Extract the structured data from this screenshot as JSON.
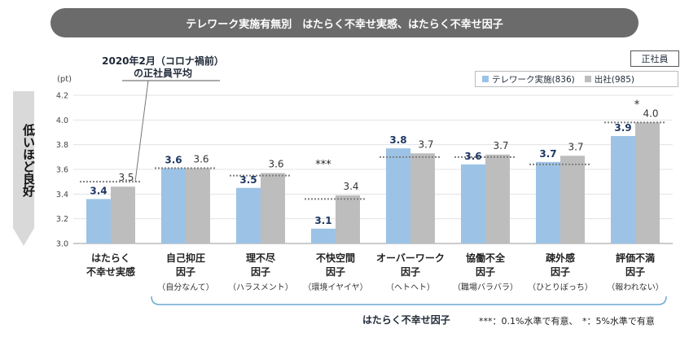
{
  "banner": {
    "title": "テレワーク実施有無別　はたらく不幸せ実感、はたらく不幸せ因子"
  },
  "badge": {
    "label": "正社員"
  },
  "callout": {
    "line1": "2020年2月（コロナ禍前）",
    "line2": "の正社員平均"
  },
  "side_label": "低いほど良好",
  "group_label": "はたらく不幸せ因子",
  "footnote": "***：0.1%水準で有意、　*：5%水準で有意",
  "colors": {
    "telework": "#9cc3e6",
    "office": "#bdbdbd",
    "reference": "#7f7f7f",
    "value_blue": "#1f3864",
    "banner": "#6b6b6b",
    "bracket": "#6aa9d4"
  },
  "chart_data": {
    "type": "bar",
    "ylabel": "(pt)",
    "ylim": [
      3.0,
      4.2
    ],
    "yticks": [
      "3.0",
      "3.2",
      "3.4",
      "3.6",
      "3.8",
      "4.0",
      "4.2"
    ],
    "grid": true,
    "legend_position": "top-right",
    "categories": [
      {
        "line1": "はたらく",
        "line2": "不幸せ実感",
        "line3": ""
      },
      {
        "line1": "自己抑圧",
        "line2": "因子",
        "line3": "（自分なんて）"
      },
      {
        "line1": "理不尽",
        "line2": "因子",
        "line3": "（ハラスメント）"
      },
      {
        "line1": "不快空間",
        "line2": "因子",
        "line3": "（環境イヤイヤ）"
      },
      {
        "line1": "オーバーワーク",
        "line2": "因子",
        "line3": "（ヘトヘト）"
      },
      {
        "line1": "協働不全",
        "line2": "因子",
        "line3": "（職場バラバラ）"
      },
      {
        "line1": "疎外感",
        "line2": "因子",
        "line3": "（ひとりぼっち）"
      },
      {
        "line1": "評価不満",
        "line2": "因子",
        "line3": "（報われない）"
      }
    ],
    "series": [
      {
        "name": "テレワーク実施(836)",
        "values": [
          3.36,
          3.61,
          3.45,
          3.12,
          3.77,
          3.64,
          3.66,
          3.87
        ],
        "labels": [
          "3.4",
          "3.6",
          "3.5",
          "3.1",
          "3.8",
          "3.6",
          "3.7",
          "3.9"
        ]
      },
      {
        "name": "出社(985)",
        "values": [
          3.46,
          3.61,
          3.57,
          3.39,
          3.73,
          3.72,
          3.71,
          3.98
        ],
        "labels": [
          "3.5",
          "3.6",
          "3.6",
          "3.4",
          "3.7",
          "3.7",
          "3.7",
          "4.0"
        ]
      }
    ],
    "reference": [
      3.5,
      3.61,
      3.55,
      3.36,
      3.7,
      3.7,
      3.64,
      3.98
    ],
    "significance": [
      "",
      "",
      "",
      "***",
      "",
      "",
      "",
      "*"
    ]
  }
}
